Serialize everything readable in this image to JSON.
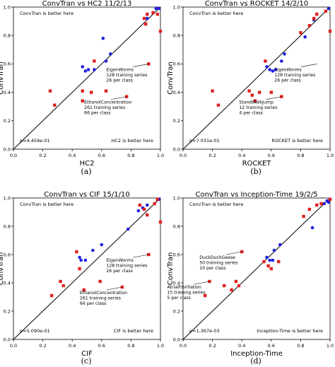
{
  "chart_data": [
    {
      "type": "scatter",
      "title": "ConvTran vs HC2 11/2/13",
      "xlabel": "HC2",
      "ylabel": "ConvTran",
      "xlim": [
        0,
        1
      ],
      "ylim": [
        0,
        1
      ],
      "ticks": [
        "0.0",
        "0.2",
        "0.4",
        "0.6",
        "0.8",
        "1.0"
      ],
      "grid": false,
      "diagonal": true,
      "caption": "(a)",
      "text_top": "ConvTran is better here",
      "text_bottom": "HC2 is better here",
      "pvalue": "p=4.459e-01",
      "series": [
        {
          "color": "#1f1fe0",
          "points": [
            [
              0.47,
              0.58
            ],
            [
              0.49,
              0.55
            ],
            [
              0.51,
              0.56
            ],
            [
              0.55,
              0.56
            ],
            [
              0.61,
              0.78
            ],
            [
              0.63,
              0.62
            ],
            [
              0.66,
              0.67
            ],
            [
              0.91,
              0.92
            ],
            [
              0.97,
              0.99
            ],
            [
              0.99,
              0.99
            ]
          ]
        },
        {
          "color": "#e01f1f",
          "points": [
            [
              0.25,
              0.41
            ],
            [
              0.28,
              0.31
            ],
            [
              0.47,
              0.41
            ],
            [
              0.47,
              0.34
            ],
            [
              0.53,
              0.4
            ],
            [
              0.55,
              0.62
            ],
            [
              0.63,
              0.41
            ],
            [
              0.77,
              0.37
            ],
            [
              0.89,
              0.92
            ],
            [
              0.9,
              0.88
            ],
            [
              0.91,
              0.95
            ],
            [
              0.92,
              0.6
            ],
            [
              0.95,
              0.96
            ],
            [
              0.98,
              0.95
            ],
            [
              1.0,
              0.83
            ]
          ]
        }
      ],
      "annotations": [
        {
          "lines": [
            "EigenWorms",
            "128 training series",
            "26 per class"
          ],
          "x": 0.92,
          "y": 0.6
        },
        {
          "lines": [
            "EthanolConcentration",
            "261 training series",
            "66 per class"
          ],
          "x": 0.77,
          "y": 0.37
        }
      ]
    },
    {
      "type": "scatter",
      "title": "ConvTran vs ROCKET 14/2/10",
      "xlabel": "ROCKET",
      "ylabel": "ConvTran",
      "xlim": [
        0,
        1
      ],
      "ylim": [
        0,
        1
      ],
      "ticks": [
        "0.0",
        "0.2",
        "0.4",
        "0.6",
        "0.8",
        "1.0"
      ],
      "grid": false,
      "diagonal": true,
      "caption": "(b)",
      "text_top": "ConvTran is better here",
      "text_bottom": "ROCKET is better here",
      "pvalue": "p=7.031e-01",
      "series": [
        {
          "color": "#1f1fe0",
          "points": [
            [
              0.57,
              0.58
            ],
            [
              0.59,
              0.56
            ],
            [
              0.61,
              0.55
            ],
            [
              0.63,
              0.56
            ],
            [
              0.67,
              0.62
            ],
            [
              0.69,
              0.67
            ],
            [
              0.83,
              0.79
            ],
            [
              0.89,
              0.91
            ],
            [
              0.91,
              0.95
            ],
            [
              0.99,
              0.99
            ]
          ]
        },
        {
          "color": "#e01f1f",
          "points": [
            [
              0.2,
              0.41
            ],
            [
              0.24,
              0.31
            ],
            [
              0.45,
              0.41
            ],
            [
              0.47,
              0.38
            ],
            [
              0.49,
              0.34
            ],
            [
              0.52,
              0.4
            ],
            [
              0.56,
              0.62
            ],
            [
              0.6,
              0.4
            ],
            [
              0.67,
              0.37
            ],
            [
              0.8,
              0.82
            ],
            [
              0.86,
              0.87
            ],
            [
              0.89,
              0.92
            ],
            [
              0.91,
              0.95
            ],
            [
              0.97,
              0.97
            ],
            [
              1.0,
              0.83
            ]
          ]
        }
      ],
      "annotations": [
        {
          "lines": [
            "EigenWorms",
            "128 training series",
            "26 per class"
          ],
          "x": 0.91,
          "y": 0.6
        },
        {
          "lines": [
            "StandWalkJump",
            "12 training series",
            "4 per class"
          ],
          "x": 0.67,
          "y": 0.37
        }
      ]
    },
    {
      "type": "scatter",
      "title": "ConvTran vs CIF 15/1/10",
      "xlabel": "CIF",
      "ylabel": "ConvTran",
      "xlim": [
        0,
        1
      ],
      "ylim": [
        0,
        1
      ],
      "ticks": [
        "0.0",
        "0.2",
        "0.4",
        "0.6",
        "0.8",
        "1.0"
      ],
      "grid": false,
      "diagonal": true,
      "caption": "(c)",
      "text_top": "ConvTran is better here",
      "text_bottom": "CIF is better here",
      "pvalue": "p=5.090e-01",
      "series": [
        {
          "color": "#1f1fe0",
          "points": [
            [
              0.45,
              0.58
            ],
            [
              0.46,
              0.56
            ],
            [
              0.49,
              0.56
            ],
            [
              0.54,
              0.63
            ],
            [
              0.6,
              0.67
            ],
            [
              0.78,
              0.78
            ],
            [
              0.85,
              0.91
            ],
            [
              0.88,
              0.93
            ],
            [
              0.91,
              0.95
            ],
            [
              0.99,
              0.99
            ]
          ]
        },
        {
          "color": "#e01f1f",
          "points": [
            [
              0.26,
              0.31
            ],
            [
              0.32,
              0.41
            ],
            [
              0.34,
              0.38
            ],
            [
              0.43,
              0.62
            ],
            [
              0.45,
              0.5
            ],
            [
              0.48,
              0.35
            ],
            [
              0.59,
              0.41
            ],
            [
              0.74,
              0.37
            ],
            [
              0.86,
              0.95
            ],
            [
              0.89,
              0.92
            ],
            [
              0.91,
              0.88
            ],
            [
              0.92,
              0.6
            ],
            [
              0.96,
              0.96
            ],
            [
              0.98,
              0.99
            ],
            [
              1.0,
              0.83
            ]
          ]
        }
      ],
      "annotations": [
        {
          "lines": [
            "EigenWorms",
            "128 training series",
            "26 per class"
          ],
          "x": 0.92,
          "y": 0.6
        },
        {
          "lines": [
            "EthanolConcentration",
            "261 training series",
            "66 per class"
          ],
          "x": 0.74,
          "y": 0.37
        }
      ]
    },
    {
      "type": "scatter",
      "title": "ConvTran vs Inception-Time 19/2/5",
      "xlabel": "Inception-Time",
      "ylabel": "ConvTran",
      "xlim": [
        0,
        1
      ],
      "ylim": [
        0,
        1
      ],
      "ticks": [
        "0.0",
        "0.2",
        "0.4",
        "0.6",
        "0.8",
        "1.0"
      ],
      "grid": false,
      "diagonal": true,
      "caption": "(d)",
      "text_top": "ConvTran is better here",
      "text_bottom": "Inception-Time is better here",
      "pvalue": "p=1.367e-03",
      "series": [
        {
          "color": "#1f1fe0",
          "points": [
            [
              0.57,
              0.58
            ],
            [
              0.59,
              0.56
            ],
            [
              0.61,
              0.56
            ],
            [
              0.62,
              0.63
            ],
            [
              0.66,
              0.67
            ],
            [
              0.88,
              0.79
            ],
            [
              0.96,
              0.96
            ],
            [
              0.98,
              0.98
            ],
            [
              1.0,
              0.99
            ],
            [
              0.99,
              0.97
            ]
          ]
        },
        {
          "color": "#e01f1f",
          "points": [
            [
              0.15,
              0.31
            ],
            [
              0.18,
              0.41
            ],
            [
              0.28,
              0.38
            ],
            [
              0.33,
              0.35
            ],
            [
              0.36,
              0.41
            ],
            [
              0.38,
              0.38
            ],
            [
              0.4,
              0.62
            ],
            [
              0.55,
              0.55
            ],
            [
              0.58,
              0.52
            ],
            [
              0.6,
              0.5
            ],
            [
              0.65,
              0.55
            ],
            [
              0.82,
              0.87
            ],
            [
              0.86,
              0.92
            ],
            [
              0.91,
              0.95
            ],
            [
              0.94,
              0.96
            ],
            [
              1.0,
              0.99
            ]
          ]
        }
      ],
      "annotations": [
        {
          "lines": [
            "DuckDuckGeese",
            "50 training series",
            "10 per class"
          ],
          "x": 0.4,
          "y": 0.62
        },
        {
          "lines": [
            "AtrialFibrillation",
            "15 training series",
            "5 per class"
          ],
          "x": 0.18,
          "y": 0.41
        }
      ]
    }
  ]
}
